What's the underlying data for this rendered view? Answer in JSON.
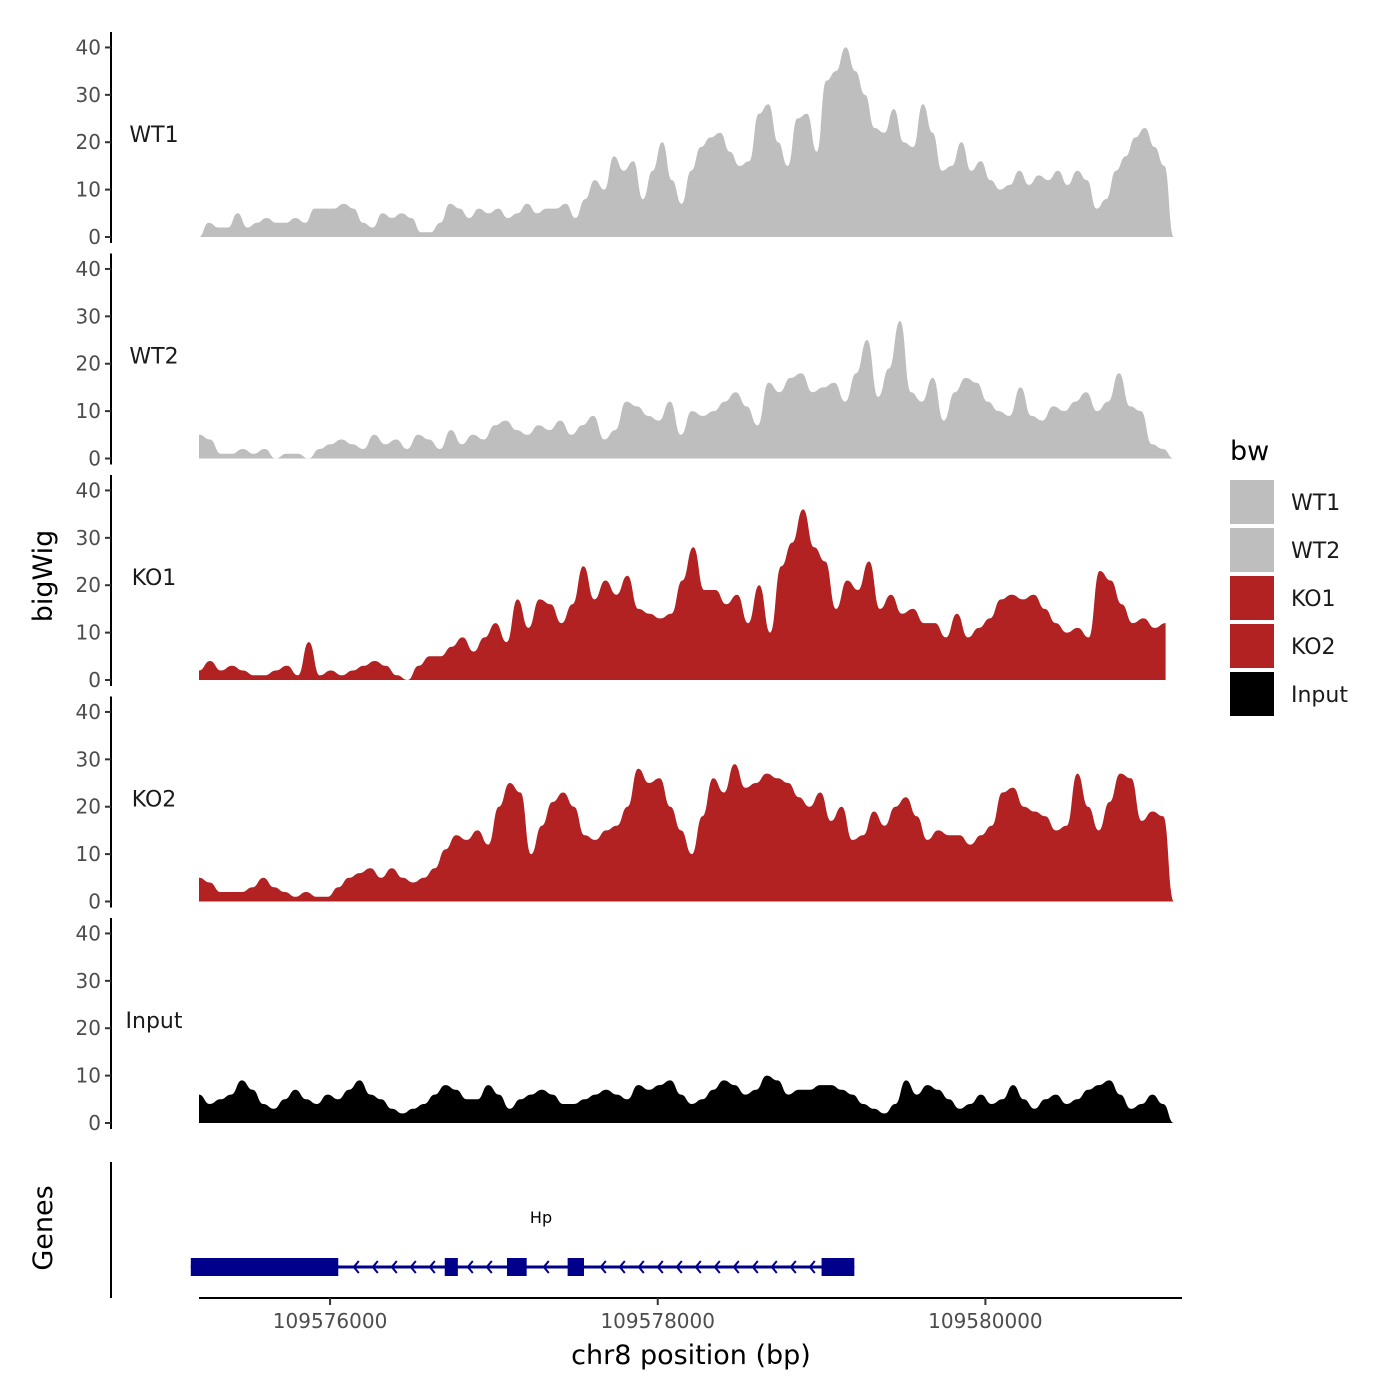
{
  "chart_data": {
    "type": "area",
    "xlabel": "chr8 position (bp)",
    "ylabel": "bigWig",
    "genes_label": "Genes",
    "chromosome": "chr8",
    "xlim": [
      109575200,
      109581200
    ],
    "ylim": [
      0,
      42
    ],
    "y_ticks": [
      0,
      10,
      20,
      30,
      40
    ],
    "y_tick_labels": [
      "0",
      "10",
      "20",
      "30",
      "40"
    ],
    "x_ticks": [
      109576000,
      109578000,
      109580000
    ],
    "x_tick_labels": [
      "109576000",
      "109578000",
      "109580000"
    ],
    "legend": {
      "title": "bw",
      "entries": [
        {
          "label": "WT1",
          "color": "#bebebe"
        },
        {
          "label": "WT2",
          "color": "#bebebe"
        },
        {
          "label": "KO1",
          "color": "#b22222"
        },
        {
          "label": "KO2",
          "color": "#b22222"
        },
        {
          "label": "Input",
          "color": "#000000"
        }
      ]
    },
    "series": [
      {
        "name": "WT1",
        "color": "#bebebe",
        "x_start": 109575200,
        "x_end": 109581150,
        "values": [
          0,
          3,
          2,
          2,
          5,
          2,
          3,
          4,
          3,
          3,
          4,
          3,
          6,
          6,
          6,
          7,
          6,
          3,
          2,
          5,
          4,
          5,
          4,
          1,
          1,
          3,
          7,
          6,
          4,
          6,
          5,
          6,
          4,
          5,
          7,
          5,
          6,
          6,
          7,
          4,
          8,
          12,
          10,
          17,
          14,
          16,
          8,
          14,
          20,
          12,
          7,
          14,
          19,
          21,
          22,
          18,
          15,
          16,
          26,
          28,
          20,
          15,
          25,
          26,
          18,
          33,
          35,
          40,
          35,
          30,
          23,
          22,
          27,
          20,
          19,
          28,
          22,
          14,
          15,
          20,
          14,
          16,
          12,
          10,
          11,
          14,
          11,
          13,
          12,
          14,
          11,
          14,
          12,
          6,
          8,
          14,
          17,
          21,
          23,
          19,
          15,
          0
        ]
      },
      {
        "name": "WT2",
        "color": "#bebebe",
        "x_start": 109575200,
        "x_end": 109581150,
        "values": [
          5,
          4,
          1,
          1,
          2,
          1,
          2,
          0,
          1,
          1,
          0,
          2,
          3,
          4,
          3,
          2,
          5,
          3,
          4,
          2,
          5,
          4,
          2,
          6,
          3,
          5,
          4,
          7,
          8,
          6,
          5,
          7,
          6,
          8,
          5,
          7,
          9,
          4,
          6,
          12,
          11,
          9,
          8,
          12,
          5,
          10,
          9,
          10,
          12,
          14,
          11,
          7,
          16,
          14,
          17,
          18,
          14,
          15,
          16,
          12,
          18,
          25,
          13,
          19,
          29,
          14,
          12,
          17,
          8,
          14,
          17,
          16,
          12,
          10,
          9,
          15,
          9,
          8,
          11,
          10,
          12,
          14,
          10,
          12,
          18,
          11,
          10,
          3,
          2,
          0
        ]
      },
      {
        "name": "KO1",
        "color": "#b22222",
        "x_start": 109575200,
        "x_end": 109581100,
        "values": [
          2,
          4,
          2,
          3,
          2,
          1,
          1,
          2,
          3,
          1,
          8,
          1,
          2,
          1,
          2,
          3,
          4,
          3,
          1,
          0,
          3,
          5,
          5,
          7,
          9,
          6,
          9,
          12,
          8,
          17,
          11,
          17,
          16,
          12,
          16,
          24,
          17,
          21,
          18,
          22,
          15,
          14,
          13,
          14,
          21,
          28,
          19,
          19,
          16,
          18,
          12,
          20,
          10,
          24,
          29,
          36,
          28,
          25,
          15,
          21,
          19,
          25,
          15,
          18,
          14,
          15,
          12,
          12,
          9,
          14,
          9,
          11,
          13,
          17,
          18,
          17,
          18,
          15,
          12,
          10,
          11,
          9,
          23,
          21,
          16,
          12,
          13,
          11,
          12
        ]
      },
      {
        "name": "KO2",
        "color": "#b22222",
        "x_start": 109575200,
        "x_end": 109581150,
        "values": [
          5,
          4,
          2,
          2,
          2,
          3,
          5,
          3,
          2,
          1,
          2,
          1,
          1,
          3,
          5,
          6,
          7,
          5,
          7,
          5,
          4,
          5,
          7,
          11,
          14,
          13,
          15,
          12,
          20,
          25,
          23,
          10,
          16,
          21,
          23,
          20,
          14,
          13,
          15,
          16,
          20,
          28,
          25,
          26,
          20,
          15,
          10,
          18,
          26,
          23,
          29,
          24,
          25,
          27,
          26,
          25,
          22,
          20,
          23,
          17,
          20,
          13,
          14,
          19,
          16,
          20,
          22,
          18,
          13,
          15,
          14,
          14,
          12,
          14,
          16,
          23,
          24,
          20,
          19,
          18,
          15,
          16,
          27,
          20,
          15,
          21,
          27,
          26,
          17,
          19,
          18,
          0
        ]
      },
      {
        "name": "Input",
        "color": "#000000",
        "x_start": 109575200,
        "x_end": 109581150,
        "values": [
          6,
          4,
          5,
          6,
          9,
          7,
          4,
          3,
          5,
          7,
          5,
          4,
          6,
          5,
          7,
          9,
          6,
          5,
          3,
          2,
          3,
          4,
          6,
          8,
          7,
          5,
          5,
          8,
          6,
          3,
          5,
          6,
          7,
          6,
          4,
          4,
          5,
          6,
          7,
          6,
          5,
          8,
          7,
          8,
          9,
          6,
          4,
          5,
          7,
          9,
          8,
          6,
          7,
          10,
          9,
          6,
          7,
          7,
          8,
          8,
          7,
          6,
          4,
          3,
          2,
          4,
          9,
          6,
          8,
          7,
          5,
          3,
          4,
          6,
          4,
          5,
          8,
          5,
          3,
          5,
          6,
          4,
          5,
          7,
          8,
          9,
          6,
          3,
          4,
          6,
          4,
          0
        ]
      }
    ],
    "gene": {
      "name": "Hp",
      "strand": "-",
      "color": "#00008b",
      "start": 109575150,
      "end": 109579200,
      "exons": [
        [
          109575150,
          109576050
        ],
        [
          109576700,
          109576780
        ],
        [
          109577080,
          109577200
        ],
        [
          109577450,
          109577550
        ],
        [
          109579000,
          109579200
        ]
      ]
    }
  }
}
